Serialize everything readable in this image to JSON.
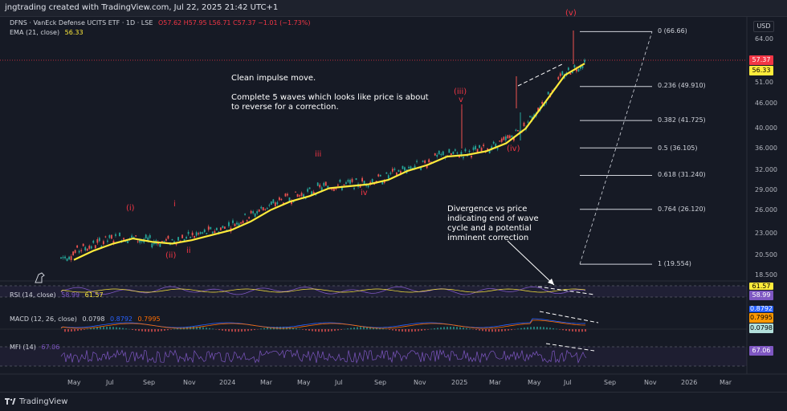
{
  "header": {
    "title": "jngtrading created with TradingView.com, Jul 22, 2025 21:42 UTC+1"
  },
  "legend": {
    "main": "DFNS · VanEck Defense UCITS ETF · 1D · LSE",
    "ohlc": "O57.62  H57.95  L56.71  C57.37  −1.01 (−1.73%)",
    "ema_label": "EMA (21, close)",
    "ema_value": "56.33",
    "rsi_label": "RSI (14, close)",
    "rsi_value1": "58.99",
    "rsi_value2": "61.57",
    "macd_label": "MACD (12, 26, close)",
    "macd_v1": "0.0798",
    "macd_v2": "0.8792",
    "macd_v3": "0.7995",
    "mfi_label": "MFI (14)",
    "mfi_value": "67.06"
  },
  "annotations": {
    "impulse": "Clean impulse move.\n\nComplete 5 waves which looks like price is about\nto reverse for a correction.",
    "divergence": "Divergence vs price\nindicating end of wave\ncycle and a potential\nimminent correction"
  },
  "waves": {
    "w_i_paren": "(i)",
    "w_ii_paren": "(ii)",
    "w_i_small": "i",
    "w_ii_small": "ii",
    "w_iii_small": "iii",
    "w_iv_small": "iv",
    "w_iii_paren": "(iii)",
    "w_v_small": "v",
    "w_iv_paren": "(iv)",
    "w_v_paren": "(v)"
  },
  "fib": {
    "f0": "0 (66.66)",
    "f236": "0.236 (49.910)",
    "f382": "0.382 (41.725)",
    "f5": "0.5 (36.105)",
    "f618": "0.618 (31.240)",
    "f764": "0.764 (26.120)",
    "f1": "1 (19.554)"
  },
  "price_tags": {
    "last": "57.37",
    "ema": "56.33",
    "rsi_a": "61.57",
    "rsi_b": "58.99",
    "macd_a": "0.8792",
    "macd_b": "0.7995",
    "macd_c": "0.0798",
    "mfi": "67.06"
  },
  "price_axis": {
    "currency": "USD",
    "ticks": [
      "64.00",
      "51.00",
      "46.000",
      "40.000",
      "36.000",
      "32.000",
      "29.000",
      "26.000",
      "23.000",
      "20.500",
      "18.500"
    ]
  },
  "time_axis": {
    "ticks": [
      "May",
      "Jul",
      "Sep",
      "Nov",
      "2024",
      "Mar",
      "May",
      "Jul",
      "Sep",
      "Nov",
      "2025",
      "Mar",
      "May",
      "Jul",
      "Sep",
      "Nov",
      "2026",
      "Mar"
    ]
  },
  "footer": {
    "brand": "TradingView"
  },
  "colors": {
    "bg": "#161a25",
    "up": "#26a69a",
    "down": "#ef5350",
    "ema": "#ffeb3b",
    "rsi": "#7e57c2",
    "macd": "#2962ff",
    "signal": "#ff6d00",
    "wave": "#f23645"
  },
  "chart_data": {
    "type": "line",
    "title": "DFNS · VanEck Defense UCITS ETF · 1D · LSE",
    "series": [
      {
        "name": "EMA (21, close)",
        "x": [
          "2023-05",
          "2023-06",
          "2023-07",
          "2023-08",
          "2023-09",
          "2023-10",
          "2023-11",
          "2023-12",
          "2024-01",
          "2024-02",
          "2024-03",
          "2024-04",
          "2024-05",
          "2024-06",
          "2024-07",
          "2024-08",
          "2024-09",
          "2024-10",
          "2024-11",
          "2024-12",
          "2025-01",
          "2025-02",
          "2025-03",
          "2025-04",
          "2025-05",
          "2025-06",
          "2025-07"
        ],
        "values": [
          20.0,
          21.0,
          21.8,
          22.4,
          22.0,
          21.8,
          22.2,
          22.8,
          23.4,
          24.5,
          26.0,
          27.2,
          28.0,
          29.2,
          29.5,
          29.8,
          30.5,
          32.0,
          33.0,
          34.5,
          34.8,
          35.5,
          37.0,
          40.0,
          46.0,
          53.0,
          56.33
        ]
      }
    ],
    "fib_levels": [
      {
        "level": "0",
        "value": 66.66
      },
      {
        "level": "0.236",
        "value": 49.91
      },
      {
        "level": "0.382",
        "value": 41.725
      },
      {
        "level": "0.5",
        "value": 36.105
      },
      {
        "level": "0.618",
        "value": 31.24
      },
      {
        "level": "0.764",
        "value": 26.12
      },
      {
        "level": "1",
        "value": 19.554
      }
    ],
    "last_close": 57.37,
    "ylim": [
      18.5,
      66.66
    ],
    "log_scale": true
  }
}
